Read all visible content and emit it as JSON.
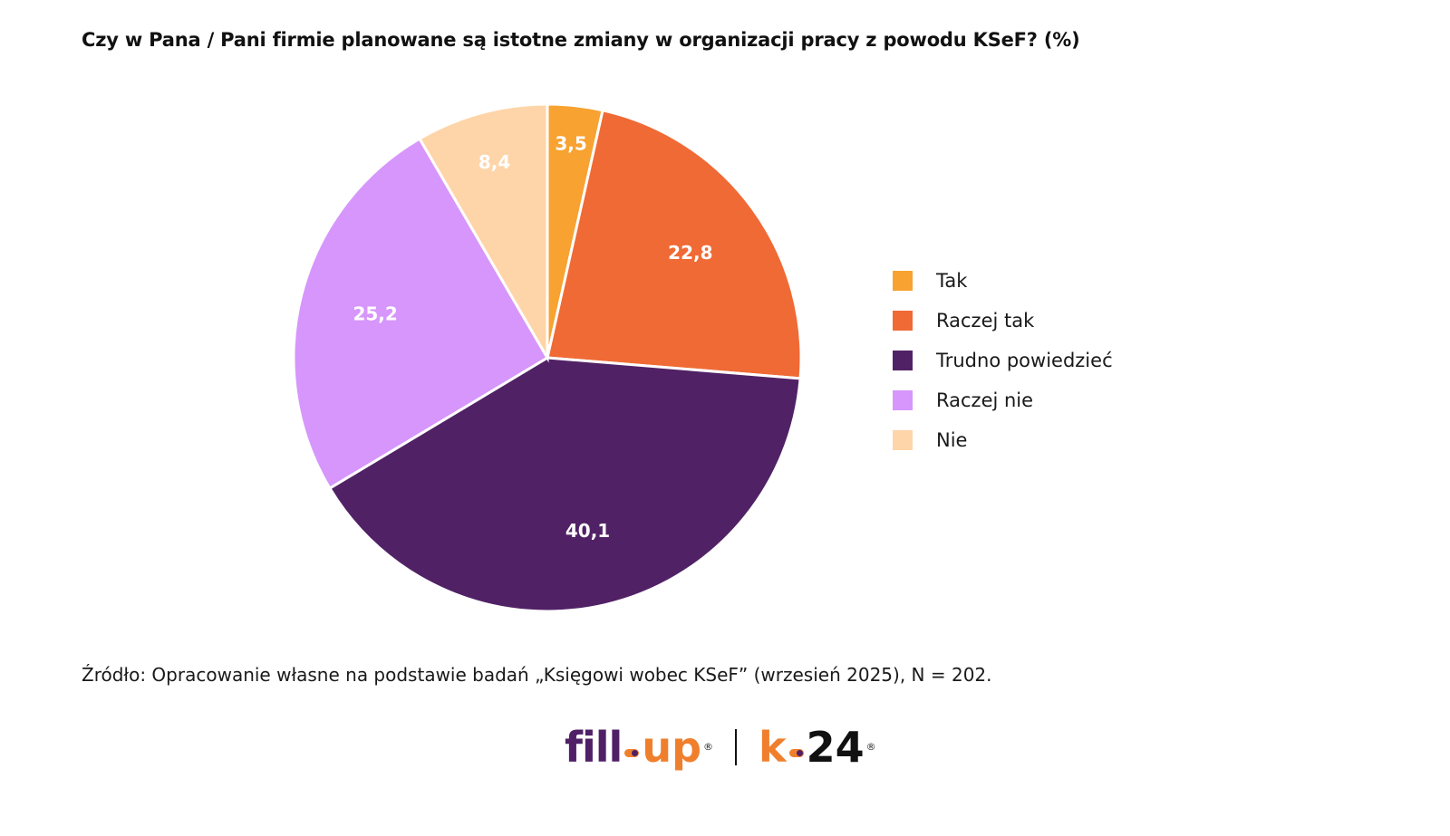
{
  "chart_data": {
    "type": "pie",
    "title": "Czy w Pana / Pani firmie planowane są istotne zmiany w organizacji pracy z powodu KSeF? (%)",
    "categories": [
      "Tak",
      "Raczej tak",
      "Trudno powiedzieć",
      "Raczej nie",
      "Nie"
    ],
    "values": [
      3.5,
      22.8,
      40.1,
      25.2,
      8.4
    ],
    "value_labels": [
      "3,5",
      "22,8",
      "40,1",
      "25,2",
      "8,4"
    ],
    "colors": [
      "#f8a231",
      "#f06a35",
      "#512166",
      "#d696fb",
      "#fed5a9"
    ],
    "label_colors": [
      "#ffffff",
      "#ffffff",
      "#ffffff",
      "#ffffff",
      "#ffffff"
    ],
    "start_angle": "top",
    "direction": "clockwise",
    "legend_position": "right"
  },
  "source": "Źródło: Opracowanie własne na podstawie badań „Księgowi wobec KSeF” (wrzesień 2025), N = 202.",
  "logo": {
    "brand1_a": "fill",
    "brand1_b": "up",
    "brand2_a": "k",
    "brand2_b": "24",
    "registered": "®"
  }
}
